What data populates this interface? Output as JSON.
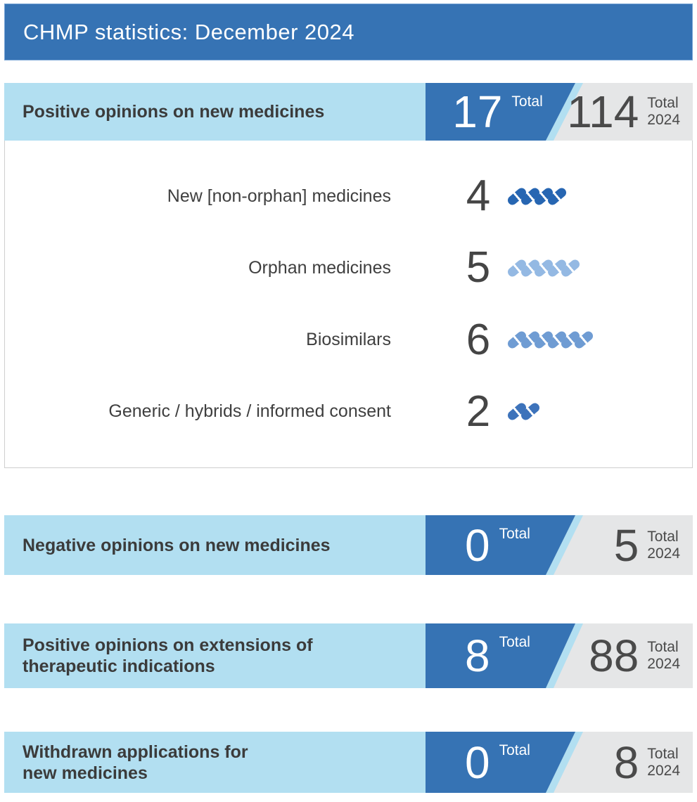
{
  "header": {
    "title": "CHMP statistics: December 2024"
  },
  "colors": {
    "brand-blue": "#3673b4",
    "light-blue": "#b2dff1",
    "panel-gray": "#e5e6e7",
    "text-dark": "#3b3b3b"
  },
  "cards": [
    {
      "title_line1": "Positive opinions on new medicines",
      "title_line2": "",
      "month_value": "17",
      "month_label": "Total",
      "year_value": "114",
      "year_label_line1": "Total",
      "year_label_line2": "2024",
      "rows": [
        {
          "label": "New [non-orphan] medicines",
          "value": 4,
          "color": "#2766b2"
        },
        {
          "label": "Orphan medicines",
          "value": 5,
          "color": "#94b9e3"
        },
        {
          "label": "Biosimilars",
          "value": 6,
          "color": "#6f9cd3"
        },
        {
          "label": "Generic / hybrids / informed consent",
          "value": 2,
          "color": "#3d73bb"
        }
      ]
    },
    {
      "title_line1": "Negative opinions on new medicines",
      "title_line2": "",
      "month_value": "0",
      "month_label": "Total",
      "year_value": "5",
      "year_label_line1": "Total",
      "year_label_line2": "2024"
    },
    {
      "title_line1": "Positive opinions on extensions of",
      "title_line2": "therapeutic indications",
      "month_value": "8",
      "month_label": "Total",
      "year_value": "88",
      "year_label_line1": "Total",
      "year_label_line2": "2024"
    },
    {
      "title_line1": "Withdrawn applications for",
      "title_line2": "new medicines",
      "month_value": "0",
      "month_label": "Total",
      "year_value": "8",
      "year_label_line1": "Total",
      "year_label_line2": "2024"
    }
  ],
  "chart_data": [
    {
      "type": "bar",
      "title": "Positive opinions on new medicines",
      "categories": [
        "New [non-orphan] medicines",
        "Orphan medicines",
        "Biosimilars",
        "Generic / hybrids / informed consent"
      ],
      "values": [
        4,
        5,
        6,
        2
      ],
      "totals": {
        "month": 17,
        "year_2024": 114
      },
      "legend_position": "none",
      "note": "unit pictogram chart, one pill icon per opinion"
    },
    {
      "type": "table",
      "title": "Negative opinions on new medicines",
      "totals": {
        "month": 0,
        "year_2024": 5
      }
    },
    {
      "type": "table",
      "title": "Positive opinions on extensions of therapeutic indications",
      "totals": {
        "month": 8,
        "year_2024": 88
      }
    },
    {
      "type": "table",
      "title": "Withdrawn applications for new medicines",
      "totals": {
        "month": 0,
        "year_2024": 8
      }
    }
  ]
}
